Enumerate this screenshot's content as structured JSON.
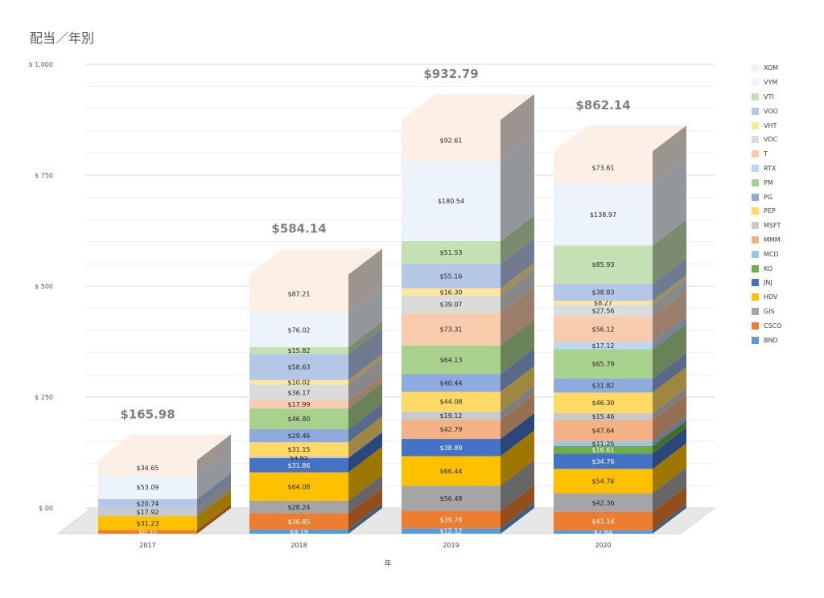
{
  "title": "配当／年別",
  "chart_data": {
    "type": "bar",
    "stacked": true,
    "style": "3d",
    "title": "配当／年別",
    "xlabel": "年",
    "ylabel": "",
    "ylim": [
      0,
      1000
    ],
    "yticks": [
      "$ 00",
      "$ 250",
      "$ 500",
      "$ 750",
      "$ 1,000"
    ],
    "ytick_values": [
      0,
      250,
      500,
      750,
      1000
    ],
    "grid": true,
    "legend_position": "right",
    "categories": [
      "2017",
      "2018",
      "2019",
      "2020"
    ],
    "totals": [
      "$165.98",
      "$584.14",
      "$932.79",
      "$862.14"
    ],
    "series": [
      {
        "name": "BND",
        "color": "#5b9bd5",
        "values": [
          0,
          9.19,
          12.12,
          7.84
        ]
      },
      {
        "name": "CSCO",
        "color": "#ed7d31",
        "values": [
          8.35,
          36.85,
          39.78,
          41.14
        ]
      },
      {
        "name": "GIS",
        "color": "#a5a5a5",
        "values": [
          0,
          28.24,
          56.48,
          42.36
        ]
      },
      {
        "name": "HDV",
        "color": "#ffc000",
        "values": [
          31.23,
          64.08,
          66.44,
          54.76
        ]
      },
      {
        "name": "JNJ",
        "color": "#4472c4",
        "values": [
          0,
          31.86,
          38.89,
          34.76
        ]
      },
      {
        "name": "KO",
        "color": "#70ad47",
        "values": [
          0,
          0,
          0,
          16.61
        ]
      },
      {
        "name": "MCD",
        "color": "#9dc3e6",
        "values": [
          0,
          0,
          0,
          11.25
        ]
      },
      {
        "name": "MMM",
        "color": "#f4b183",
        "values": [
          0,
          0,
          42.79,
          47.64
        ]
      },
      {
        "name": "MSFT",
        "color": "#c9c9c9",
        "values": [
          17.92,
          4.65,
          19.12,
          15.46
        ]
      },
      {
        "name": "PEP",
        "color": "#ffd966",
        "values": [
          0,
          31.15,
          44.08,
          46.3
        ]
      },
      {
        "name": "PG",
        "color": "#8faadc",
        "values": [
          0,
          29.46,
          40.44,
          31.82
        ]
      },
      {
        "name": "PM",
        "color": "#a9d18e",
        "values": [
          0,
          46.8,
          64.13,
          65.79
        ]
      },
      {
        "name": "RTX",
        "color": "#bdd7ee",
        "values": [
          0,
          0,
          0,
          17.12
        ]
      },
      {
        "name": "T",
        "color": "#f8cbad",
        "values": [
          0,
          17.99,
          73.31,
          56.12
        ]
      },
      {
        "name": "VDC",
        "color": "#dbdbdb",
        "values": [
          0,
          36.17,
          39.07,
          27.56
        ]
      },
      {
        "name": "VHT",
        "color": "#ffe699",
        "values": [
          0,
          10.02,
          16.3,
          8.27
        ]
      },
      {
        "name": "VOO",
        "color": "#b4c7e7",
        "values": [
          20.74,
          58.63,
          55.16,
          38.83
        ]
      },
      {
        "name": "VTI",
        "color": "#c5e0b4",
        "values": [
          0,
          15.82,
          51.53,
          85.93
        ]
      },
      {
        "name": "VYM",
        "color": "#edf3fb",
        "values": [
          53.09,
          76.02,
          180.54,
          138.97
        ]
      },
      {
        "name": "XOM",
        "color": "#fcefe5",
        "values": [
          34.65,
          87.21,
          92.61,
          73.61
        ]
      }
    ]
  }
}
